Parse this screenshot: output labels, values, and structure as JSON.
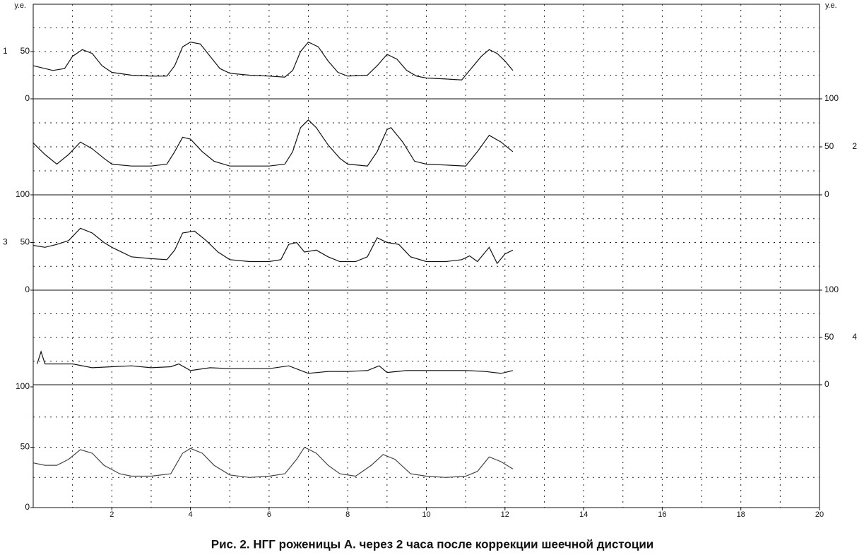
{
  "chart_data": [
    {
      "type": "line",
      "label": "1",
      "side": "left",
      "unit_label": "у.е.",
      "ylim": [
        0,
        100
      ],
      "yticks": [
        0,
        50
      ],
      "ygrid": [
        25,
        50,
        75
      ],
      "color": "#111",
      "x": [
        0,
        0.5,
        0.8,
        1.0,
        1.25,
        1.5,
        1.75,
        2,
        2.5,
        3,
        3.4,
        3.6,
        3.8,
        4.0,
        4.25,
        4.5,
        4.75,
        5,
        5.5,
        6,
        6.4,
        6.6,
        6.8,
        7.0,
        7.25,
        7.5,
        7.75,
        8.0,
        8.5,
        8.75,
        9.0,
        9.25,
        9.5,
        9.75,
        10,
        10.5,
        10.9,
        11.1,
        11.4,
        11.6,
        11.8,
        12,
        12.2
      ],
      "values": [
        35,
        30,
        32,
        45,
        52,
        48,
        35,
        28,
        25,
        24,
        24,
        35,
        55,
        60,
        58,
        45,
        32,
        27,
        25,
        24,
        23,
        30,
        50,
        60,
        55,
        40,
        28,
        24,
        25,
        35,
        47,
        42,
        30,
        24,
        22,
        21,
        20,
        30,
        45,
        52,
        48,
        40,
        30
      ]
    },
    {
      "type": "line",
      "label": "2",
      "side": "right",
      "unit_label": "у.е.",
      "ylim": [
        0,
        100
      ],
      "yticks": [
        0,
        50,
        100
      ],
      "ygrid": [
        25,
        50,
        75
      ],
      "color": "#111",
      "x": [
        0,
        0.3,
        0.6,
        0.9,
        1.2,
        1.5,
        1.8,
        2,
        2.5,
        3,
        3.4,
        3.6,
        3.8,
        4.0,
        4.3,
        4.6,
        5,
        5.5,
        6,
        6.4,
        6.6,
        6.8,
        7.0,
        7.2,
        7.5,
        7.8,
        8,
        8.5,
        8.75,
        9.0,
        9.1,
        9.4,
        9.7,
        10,
        10.5,
        11,
        11.3,
        11.6,
        11.9,
        12.2
      ],
      "values": [
        54,
        42,
        32,
        42,
        55,
        48,
        38,
        32,
        30,
        30,
        32,
        45,
        60,
        58,
        45,
        35,
        30,
        30,
        30,
        32,
        45,
        70,
        78,
        70,
        52,
        38,
        32,
        30,
        45,
        68,
        70,
        55,
        35,
        32,
        31,
        30,
        45,
        62,
        55,
        45
      ]
    },
    {
      "type": "line",
      "label": "3",
      "side": "left",
      "ylim": [
        0,
        100
      ],
      "yticks": [
        0,
        50,
        100
      ],
      "ygrid": [
        25,
        50,
        75
      ],
      "color": "#111",
      "x": [
        0,
        0.3,
        0.6,
        0.9,
        1.2,
        1.5,
        1.8,
        2,
        2.5,
        3,
        3.4,
        3.6,
        3.8,
        4.1,
        4.4,
        4.7,
        5,
        5.5,
        6,
        6.3,
        6.5,
        6.7,
        6.9,
        7.2,
        7.5,
        7.8,
        8.2,
        8.5,
        8.75,
        9.0,
        9.3,
        9.6,
        10,
        10.5,
        10.9,
        11.1,
        11.3,
        11.6,
        11.8,
        12,
        12.2
      ],
      "values": [
        47,
        45,
        48,
        52,
        65,
        60,
        50,
        45,
        35,
        33,
        32,
        42,
        60,
        62,
        52,
        40,
        32,
        30,
        30,
        32,
        48,
        50,
        40,
        42,
        35,
        30,
        30,
        35,
        55,
        50,
        48,
        35,
        30,
        30,
        32,
        36,
        30,
        45,
        28,
        38,
        42
      ]
    },
    {
      "type": "line",
      "label": "4",
      "side": "right",
      "ylim": [
        0,
        100
      ],
      "yticks": [
        0,
        50,
        100
      ],
      "ygrid": [
        25,
        50,
        75
      ],
      "color": "#111",
      "x": [
        0.1,
        0.2,
        0.3,
        1,
        1.5,
        2,
        2.5,
        3,
        3.5,
        3.7,
        4,
        4.5,
        5,
        5.5,
        6,
        6.5,
        7,
        7.5,
        8,
        8.5,
        8.8,
        9,
        9.5,
        10,
        10.5,
        11,
        11.5,
        11.9,
        12.2
      ],
      "values": [
        22,
        35,
        22,
        22,
        18,
        19,
        20,
        18,
        19,
        22,
        15,
        18,
        17,
        17,
        17,
        20,
        12,
        14,
        14,
        15,
        20,
        13,
        15,
        15,
        15,
        15,
        14,
        12,
        15
      ]
    },
    {
      "type": "line",
      "side": "left",
      "ylim": [
        0,
        100
      ],
      "yticks": [
        0,
        50,
        100
      ],
      "ygrid": [
        25,
        50,
        75
      ],
      "color": "#444",
      "xlim": [
        0,
        20
      ],
      "xticks": [
        2,
        4,
        6,
        8,
        10,
        12,
        14,
        16,
        18,
        20
      ],
      "xgrid": [
        1,
        2,
        3,
        4,
        5,
        6,
        7,
        8,
        9,
        10,
        11,
        12,
        13,
        14,
        15,
        16,
        17,
        18,
        19
      ],
      "x": [
        0,
        0.3,
        0.6,
        0.9,
        1.2,
        1.5,
        1.8,
        2.2,
        2.5,
        3,
        3.5,
        3.8,
        4.0,
        4.3,
        4.6,
        5,
        5.5,
        6,
        6.4,
        6.7,
        6.9,
        7.2,
        7.5,
        7.8,
        8.2,
        8.6,
        8.9,
        9.2,
        9.6,
        10,
        10.5,
        11,
        11.3,
        11.6,
        11.9,
        12.2
      ],
      "values": [
        37,
        35,
        35,
        40,
        48,
        45,
        35,
        28,
        26,
        26,
        28,
        45,
        49,
        45,
        35,
        27,
        25,
        26,
        28,
        40,
        50,
        45,
        35,
        28,
        26,
        35,
        44,
        40,
        28,
        26,
        25,
        26,
        30,
        42,
        38,
        32
      ]
    }
  ],
  "caption": "Рис. 2. НГГ роженицы А. через 2 часа после коррекции шеечной дистоции"
}
